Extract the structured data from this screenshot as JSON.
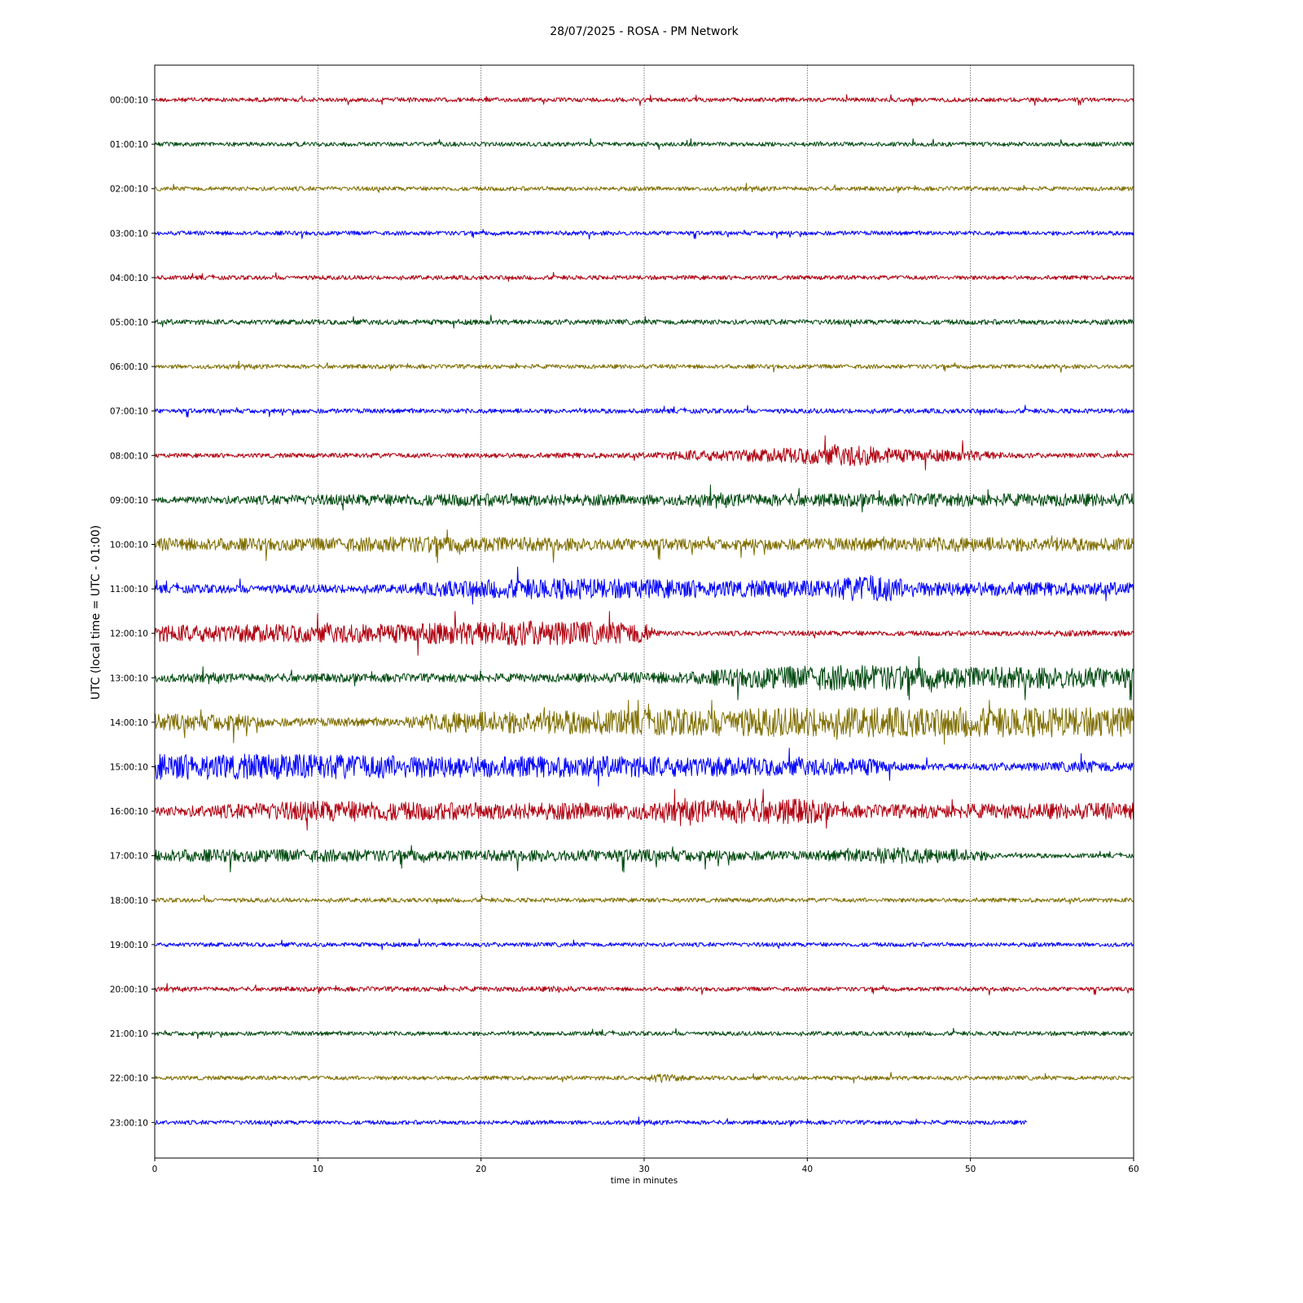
{
  "chart_data": {
    "type": "line",
    "title": "28/07/2025 - ROSA - PM Network",
    "xlabel": "time in minutes",
    "ylabel": "UTC (local time = UTC - 01:00)",
    "xlim": [
      0,
      60
    ],
    "x_ticks": [
      "0",
      "10",
      "20",
      "30",
      "40",
      "50",
      "60"
    ],
    "x_tick_values": [
      0,
      10,
      20,
      30,
      40,
      50,
      60
    ],
    "grid": "vertical dotted lines at x ticks",
    "series": [
      {
        "hour_label": "00:00:10",
        "color": "#b0000f",
        "end_minute": 60,
        "amplitude_profile": [
          [
            0,
            1
          ]
        ]
      },
      {
        "hour_label": "01:00:10",
        "color": "#004a0f",
        "end_minute": 60,
        "amplitude_profile": [
          [
            0,
            1
          ]
        ]
      },
      {
        "hour_label": "02:00:10",
        "color": "#7f6e00",
        "end_minute": 60,
        "amplitude_profile": [
          [
            0,
            1
          ]
        ]
      },
      {
        "hour_label": "03:00:10",
        "color": "#0000ff",
        "end_minute": 60,
        "amplitude_profile": [
          [
            0,
            1
          ]
        ]
      },
      {
        "hour_label": "04:00:10",
        "color": "#b0000f",
        "end_minute": 60,
        "amplitude_profile": [
          [
            0,
            1
          ]
        ]
      },
      {
        "hour_label": "05:00:10",
        "color": "#004a0f",
        "end_minute": 60,
        "amplitude_profile": [
          [
            0,
            1.2
          ]
        ]
      },
      {
        "hour_label": "06:00:10",
        "color": "#7f6e00",
        "end_minute": 60,
        "amplitude_profile": [
          [
            0,
            1
          ]
        ]
      },
      {
        "hour_label": "07:00:10",
        "color": "#0000ff",
        "end_minute": 60,
        "amplitude_profile": [
          [
            0,
            1.1
          ]
        ]
      },
      {
        "hour_label": "08:00:10",
        "color": "#b0000f",
        "end_minute": 60,
        "amplitude_profile": [
          [
            0,
            1
          ],
          [
            30,
            1.3
          ],
          [
            33,
            2.5
          ],
          [
            37,
            3
          ],
          [
            40,
            4
          ],
          [
            43,
            5
          ],
          [
            46,
            3
          ],
          [
            50,
            2.5
          ],
          [
            53,
            1.2
          ],
          [
            60,
            1
          ]
        ]
      },
      {
        "hour_label": "09:00:10",
        "color": "#004a0f",
        "end_minute": 60,
        "amplitude_profile": [
          [
            0,
            1.5
          ],
          [
            10,
            2.5
          ],
          [
            20,
            3
          ],
          [
            30,
            2.5
          ],
          [
            40,
            3
          ],
          [
            50,
            3
          ],
          [
            60,
            3
          ]
        ]
      },
      {
        "hour_label": "10:00:10",
        "color": "#7f6e00",
        "end_minute": 60,
        "amplitude_profile": [
          [
            0,
            3
          ],
          [
            10,
            3
          ],
          [
            17,
            4
          ],
          [
            25,
            3
          ],
          [
            35,
            2.5
          ],
          [
            50,
            3.5
          ],
          [
            60,
            3
          ]
        ]
      },
      {
        "hour_label": "11:00:10",
        "color": "#0000ff",
        "end_minute": 60,
        "amplitude_profile": [
          [
            0,
            2
          ],
          [
            15,
            2
          ],
          [
            18,
            4
          ],
          [
            25,
            5
          ],
          [
            35,
            4
          ],
          [
            41,
            4
          ],
          [
            44,
            7
          ],
          [
            47,
            3.5
          ],
          [
            60,
            3
          ]
        ]
      },
      {
        "hour_label": "12:00:10",
        "color": "#b0000f",
        "end_minute": 60,
        "amplitude_profile": [
          [
            0,
            4
          ],
          [
            15,
            4.5
          ],
          [
            22,
            6
          ],
          [
            30,
            5
          ],
          [
            31,
            1.2
          ],
          [
            50,
            1.2
          ],
          [
            60,
            1.5
          ]
        ]
      },
      {
        "hour_label": "13:00:10",
        "color": "#004a0f",
        "end_minute": 60,
        "amplitude_profile": [
          [
            0,
            2
          ],
          [
            25,
            2
          ],
          [
            33,
            3
          ],
          [
            37,
            5
          ],
          [
            42,
            6
          ],
          [
            45,
            6
          ],
          [
            50,
            5
          ],
          [
            60,
            5
          ]
        ]
      },
      {
        "hour_label": "14:00:10",
        "color": "#7f6e00",
        "end_minute": 60,
        "amplitude_profile": [
          [
            0,
            4
          ],
          [
            5,
            4
          ],
          [
            7,
            2
          ],
          [
            15,
            2
          ],
          [
            18,
            5
          ],
          [
            30,
            6
          ],
          [
            40,
            7
          ],
          [
            50,
            7
          ],
          [
            60,
            7
          ]
        ]
      },
      {
        "hour_label": "15:00:10",
        "color": "#0000ff",
        "end_minute": 60,
        "amplitude_profile": [
          [
            0,
            6
          ],
          [
            10,
            6
          ],
          [
            20,
            5
          ],
          [
            30,
            5
          ],
          [
            40,
            4
          ],
          [
            44,
            4
          ],
          [
            46,
            1.5
          ],
          [
            55,
            2
          ],
          [
            57,
            3
          ],
          [
            60,
            2
          ]
        ]
      },
      {
        "hour_label": "16:00:10",
        "color": "#b0000f",
        "end_minute": 60,
        "amplitude_profile": [
          [
            0,
            2
          ],
          [
            10,
            5
          ],
          [
            20,
            4
          ],
          [
            30,
            4
          ],
          [
            36,
            6
          ],
          [
            40,
            6
          ],
          [
            42,
            3
          ],
          [
            60,
            4
          ]
        ]
      },
      {
        "hour_label": "17:00:10",
        "color": "#004a0f",
        "end_minute": 60,
        "amplitude_profile": [
          [
            0,
            3
          ],
          [
            10,
            3
          ],
          [
            20,
            2.5
          ],
          [
            30,
            3
          ],
          [
            40,
            2
          ],
          [
            45,
            4
          ],
          [
            50,
            3
          ],
          [
            52,
            1.2
          ],
          [
            60,
            1
          ]
        ]
      },
      {
        "hour_label": "18:00:10",
        "color": "#7f6e00",
        "end_minute": 60,
        "amplitude_profile": [
          [
            0,
            1
          ]
        ]
      },
      {
        "hour_label": "19:00:10",
        "color": "#0000ff",
        "end_minute": 60,
        "amplitude_profile": [
          [
            0,
            1
          ]
        ]
      },
      {
        "hour_label": "20:00:10",
        "color": "#b0000f",
        "end_minute": 60,
        "amplitude_profile": [
          [
            0,
            1
          ],
          [
            24,
            1.2
          ],
          [
            25,
            1.8
          ],
          [
            26,
            1
          ],
          [
            60,
            1
          ]
        ]
      },
      {
        "hour_label": "21:00:10",
        "color": "#004a0f",
        "end_minute": 60,
        "amplitude_profile": [
          [
            0,
            1
          ]
        ]
      },
      {
        "hour_label": "22:00:10",
        "color": "#7f6e00",
        "end_minute": 60,
        "amplitude_profile": [
          [
            0,
            1
          ],
          [
            30,
            1
          ],
          [
            31,
            2.5
          ],
          [
            32,
            1.5
          ],
          [
            33,
            1
          ],
          [
            60,
            1
          ]
        ]
      },
      {
        "hour_label": "23:00:10",
        "color": "#0000ff",
        "end_minute": 53.5,
        "amplitude_profile": [
          [
            0,
            1
          ]
        ]
      }
    ]
  }
}
